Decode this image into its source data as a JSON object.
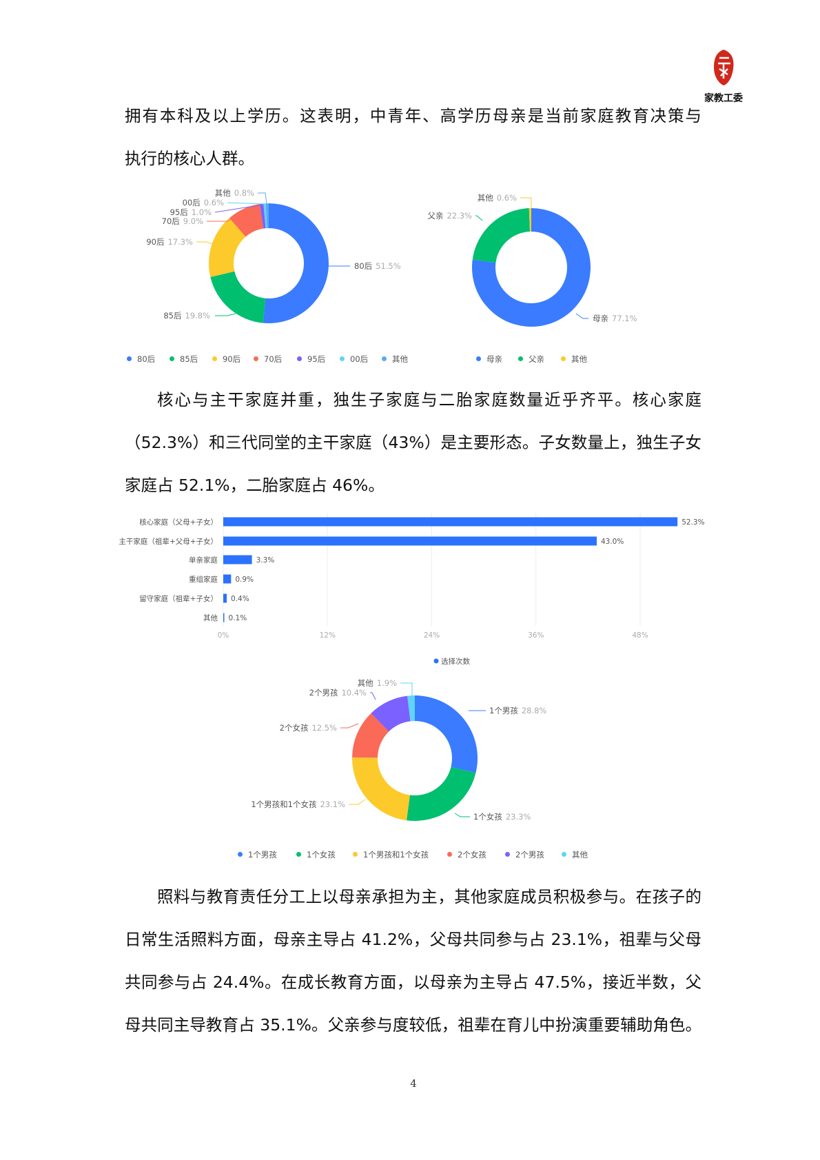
{
  "header": {
    "logo_text": "家教工委"
  },
  "paragraphs": [
    {
      "lines": [
        "拥有本科及以上学历。这表明，中青年、高学历母亲是当前家庭教育决策与",
        "执行的核心人群。"
      ]
    },
    {
      "lines": [
        "核心与主干家庭并重，独生子家庭与二胎家庭数量近乎齐平。核心家庭",
        "（52.3%）和三代同堂的主干家庭（43%）是主要形态。子女数量上，独生子女",
        "家庭占 52.1%，二胎家庭占 46%。"
      ]
    },
    {
      "lines": [
        "照料与教育责任分工上以母亲承担为主，其他家庭成员积极参与。在孩子的",
        "日常生活照料方面，母亲主导占 41.2%，父母共同参与占 23.1%，祖辈与父母",
        "共同参与占 24.4%。在成长教育方面，以母亲为主导占 47.5%，接近半数，父",
        "母共同主导教育占 35.1%。父亲参与度较低，祖辈在育儿中扮演重要辅助角色。"
      ]
    }
  ],
  "chart_data": [
    {
      "type": "pie",
      "donut": true,
      "categories": [
        "80后",
        "85后",
        "90后",
        "70后",
        "95后",
        "00后",
        "其他"
      ],
      "values": [
        51.5,
        19.8,
        17.3,
        9.0,
        1.0,
        0.6,
        0.8
      ],
      "labels": [
        "51.5%",
        "19.8%",
        "17.3%",
        "9.0%",
        "1.0%",
        "0.6%",
        "0.8%"
      ],
      "colors": [
        "#3a7bff",
        "#00bf6f",
        "#fcca2b",
        "#fa6a56",
        "#7b61ff",
        "#5fd4f7",
        "#5aa9f6"
      ],
      "legend": "bottom"
    },
    {
      "type": "pie",
      "donut": true,
      "categories": [
        "母亲",
        "父亲",
        "其他"
      ],
      "values": [
        77.1,
        22.3,
        0.6
      ],
      "labels": [
        "77.1%",
        "22.3%",
        "0.6%"
      ],
      "colors": [
        "#3a7bff",
        "#00bf6f",
        "#fcca2b"
      ],
      "legend": "bottom"
    },
    {
      "type": "bar",
      "orientation": "horizontal",
      "categories": [
        "核心家庭（父母+子女）",
        "主干家庭（祖辈+父母+子女）",
        "单亲家庭",
        "重组家庭",
        "留守家庭（祖辈+子女）",
        "其他"
      ],
      "values": [
        52.3,
        43.0,
        3.3,
        0.9,
        0.4,
        0.1
      ],
      "labels": [
        "52.3%",
        "43.0%",
        "3.3%",
        "0.9%",
        "0.4%",
        "0.1%"
      ],
      "xticks": [
        "0%",
        "12%",
        "24%",
        "36%",
        "48%"
      ],
      "xlim": [
        0,
        52.3
      ],
      "grid": true,
      "series_name": "选择次数",
      "color": "#2a72ff",
      "legend": "bottom"
    },
    {
      "type": "pie",
      "donut": true,
      "categories": [
        "1个男孩",
        "1个女孩",
        "1个男孩和1个女孩",
        "2个女孩",
        "2个男孩",
        "其他"
      ],
      "values": [
        28.8,
        23.3,
        23.1,
        12.5,
        10.4,
        1.9
      ],
      "labels": [
        "28.8%",
        "23.3%",
        "23.1%",
        "12.5%",
        "10.4%",
        "1.9%"
      ],
      "colors": [
        "#3a7bff",
        "#00bf6f",
        "#fcca2b",
        "#fa6a56",
        "#7b61ff",
        "#5fd4f7"
      ],
      "legend": "bottom"
    }
  ],
  "footer": {
    "page_number": "4"
  }
}
